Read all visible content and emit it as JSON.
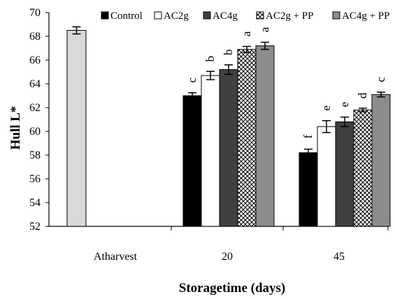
{
  "chart_data": {
    "type": "bar",
    "ylabel": "Hull L*",
    "xlabel": "Storagetime (days)",
    "ylim": [
      52,
      70
    ],
    "yticks": [
      52,
      54,
      56,
      58,
      60,
      62,
      64,
      66,
      68,
      70
    ],
    "categories": [
      "Atharvest",
      "20",
      "45"
    ],
    "legend_position": "top",
    "harvest": {
      "value": 68.5,
      "error": 0.3,
      "color": "#d9d9d9"
    },
    "series": [
      {
        "name": "Control",
        "values": [
          null,
          63.0,
          58.2
        ],
        "errors": [
          null,
          0.25,
          0.3
        ],
        "letters": [
          null,
          "c",
          "f"
        ],
        "color": "#000000",
        "pattern": "solid"
      },
      {
        "name": "AC2g",
        "values": [
          null,
          64.7,
          60.4
        ],
        "errors": [
          null,
          0.35,
          0.5
        ],
        "letters": [
          null,
          "b",
          "e"
        ],
        "color": "#ffffff",
        "pattern": "solid"
      },
      {
        "name": "AC4g",
        "values": [
          null,
          65.2,
          60.8
        ],
        "errors": [
          null,
          0.4,
          0.4
        ],
        "letters": [
          null,
          "b",
          "e"
        ],
        "color": "#404040",
        "pattern": "solid"
      },
      {
        "name": "AC2g + PP",
        "values": [
          null,
          66.9,
          61.8
        ],
        "errors": [
          null,
          0.25,
          0.15
        ],
        "letters": [
          null,
          "a",
          "d"
        ],
        "color": "#ffffff",
        "pattern": "crosshatch"
      },
      {
        "name": "AC4g + PP",
        "values": [
          null,
          67.2,
          63.1
        ],
        "errors": [
          null,
          0.3,
          0.2
        ],
        "letters": [
          null,
          "a",
          "c"
        ],
        "color": "#8c8c8c",
        "pattern": "solid"
      }
    ]
  }
}
